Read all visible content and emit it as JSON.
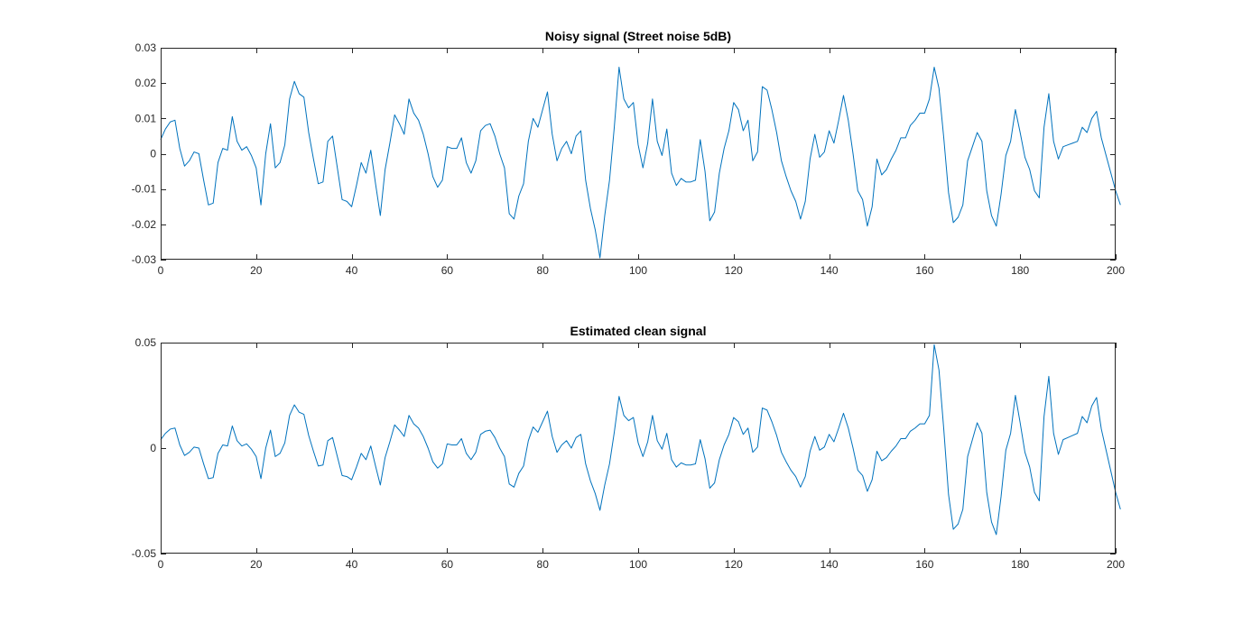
{
  "figure": {
    "background": "#ffffff",
    "axes_color": "#262626",
    "line_color": "#0072bd"
  },
  "chart_data": [
    {
      "type": "line",
      "title": "Noisy signal (Street noise 5dB)",
      "xlabel": "",
      "ylabel": "",
      "xlim": [
        0,
        200
      ],
      "ylim": [
        -0.03,
        0.03
      ],
      "xticks": [
        0,
        20,
        40,
        60,
        80,
        100,
        120,
        140,
        160,
        180,
        200
      ],
      "xtick_labels": [
        "0",
        "20",
        "40",
        "60",
        "80",
        "100",
        "120",
        "140",
        "160",
        "180",
        "200"
      ],
      "yticks": [
        -0.03,
        -0.02,
        -0.01,
        0,
        0.01,
        0.02,
        0.03
      ],
      "ytick_labels": [
        "-0.03",
        "-0.02",
        "-0.01",
        "0",
        "0.01",
        "0.02",
        "0.03"
      ],
      "grid": false,
      "series": [
        {
          "x_start": 0,
          "x_step": 1,
          "values": [
            0.004,
            0.007,
            0.009,
            0.0095,
            0.0015,
            -0.0035,
            -0.002,
            0.0005,
            0.0,
            -0.0075,
            -0.0145,
            -0.014,
            -0.0025,
            0.0015,
            0.001,
            0.0105,
            0.0035,
            0.001,
            0.002,
            -0.0005,
            -0.004,
            -0.0145,
            0.0,
            0.0085,
            -0.004,
            -0.0025,
            0.0025,
            0.0155,
            0.0205,
            0.017,
            0.016,
            0.006,
            -0.0015,
            -0.0085,
            -0.008,
            0.0035,
            0.005,
            -0.004,
            -0.013,
            -0.0135,
            -0.015,
            -0.009,
            -0.0025,
            -0.0055,
            0.001,
            -0.0085,
            -0.0175,
            -0.0045,
            0.003,
            0.011,
            0.0085,
            0.0055,
            0.0155,
            0.0115,
            0.0095,
            0.0055,
            0.0,
            -0.0065,
            -0.0095,
            -0.0075,
            0.002,
            0.0015,
            0.0015,
            0.0045,
            -0.0025,
            -0.0055,
            -0.002,
            0.0065,
            0.008,
            0.0085,
            0.005,
            0.0,
            -0.004,
            -0.017,
            -0.0185,
            -0.012,
            -0.0085,
            0.0035,
            0.01,
            0.0075,
            0.0125,
            0.0175,
            0.0055,
            -0.002,
            0.0015,
            0.0035,
            0.0,
            0.005,
            0.0065,
            -0.0075,
            -0.0155,
            -0.0215,
            -0.0295,
            -0.0175,
            -0.0075,
            0.0075,
            0.0245,
            0.0155,
            0.013,
            0.0145,
            0.0025,
            -0.004,
            0.003,
            0.0155,
            0.0035,
            -0.0005,
            0.007,
            -0.0055,
            -0.009,
            -0.007,
            -0.008,
            -0.008,
            -0.0075,
            0.004,
            -0.005,
            -0.019,
            -0.0165,
            -0.0055,
            0.0015,
            0.0065,
            0.0145,
            0.0125,
            0.0065,
            0.0095,
            -0.002,
            0.0005,
            0.019,
            0.018,
            0.0125,
            0.006,
            -0.002,
            -0.0065,
            -0.0105,
            -0.0135,
            -0.0185,
            -0.0135,
            -0.0015,
            0.0055,
            -0.001,
            0.0005,
            0.0065,
            0.003,
            0.0095,
            0.0165,
            0.0095,
            0.0,
            -0.0105,
            -0.013,
            -0.0205,
            -0.015,
            -0.0015,
            -0.006,
            -0.0045,
            -0.0015,
            0.001,
            0.0045,
            0.0045,
            0.008,
            0.0095,
            0.0115,
            0.0115,
            0.0155,
            0.0245,
            0.0185,
            0.0045,
            -0.011,
            -0.0195,
            -0.018,
            -0.0145,
            -0.002,
            0.002,
            0.006,
            0.0035,
            -0.0105,
            -0.0175,
            -0.0205,
            -0.0115,
            -0.0005,
            0.0035,
            0.0125,
            0.006,
            -0.001,
            -0.0045,
            -0.0105,
            -0.0125,
            0.0075,
            0.017,
            0.0035,
            -0.0015,
            0.002,
            0.0025,
            0.003,
            0.0035,
            0.0075,
            0.006,
            0.01,
            0.012,
            0.0045,
            -0.0005,
            -0.0055,
            -0.0105,
            -0.0145
          ]
        }
      ]
    },
    {
      "type": "line",
      "title": "Estimated clean signal",
      "xlabel": "",
      "ylabel": "",
      "xlim": [
        0,
        200
      ],
      "ylim": [
        -0.05,
        0.05
      ],
      "xticks": [
        0,
        20,
        40,
        60,
        80,
        100,
        120,
        140,
        160,
        180,
        200
      ],
      "xtick_labels": [
        "0",
        "20",
        "40",
        "60",
        "80",
        "100",
        "120",
        "140",
        "160",
        "180",
        "200"
      ],
      "yticks": [
        -0.05,
        0,
        0.05
      ],
      "ytick_labels": [
        "-0.05",
        "0",
        "0.05"
      ],
      "grid": false,
      "series": [
        {
          "x_start": 0,
          "x_step": 1,
          "values": [
            0.004,
            0.007,
            0.009,
            0.0095,
            0.0015,
            -0.0035,
            -0.002,
            0.0005,
            0.0,
            -0.0075,
            -0.0145,
            -0.014,
            -0.0025,
            0.0015,
            0.001,
            0.0105,
            0.0035,
            0.001,
            0.002,
            -0.0005,
            -0.004,
            -0.0145,
            0.0,
            0.0085,
            -0.004,
            -0.0025,
            0.0025,
            0.0155,
            0.0205,
            0.017,
            0.016,
            0.006,
            -0.0015,
            -0.0085,
            -0.008,
            0.0035,
            0.005,
            -0.004,
            -0.013,
            -0.0135,
            -0.015,
            -0.009,
            -0.0025,
            -0.0055,
            0.001,
            -0.0085,
            -0.0175,
            -0.0045,
            0.003,
            0.011,
            0.0085,
            0.0055,
            0.0155,
            0.0115,
            0.0095,
            0.0055,
            0.0,
            -0.0065,
            -0.0095,
            -0.0075,
            0.002,
            0.0015,
            0.0015,
            0.0045,
            -0.0025,
            -0.0055,
            -0.002,
            0.0065,
            0.008,
            0.0085,
            0.005,
            0.0,
            -0.004,
            -0.017,
            -0.0185,
            -0.012,
            -0.0085,
            0.0035,
            0.01,
            0.0075,
            0.0125,
            0.0175,
            0.0055,
            -0.002,
            0.0015,
            0.0035,
            0.0,
            0.005,
            0.0065,
            -0.0075,
            -0.0155,
            -0.0215,
            -0.0295,
            -0.0175,
            -0.0075,
            0.0075,
            0.0245,
            0.0155,
            0.013,
            0.0145,
            0.0025,
            -0.004,
            0.003,
            0.0155,
            0.0035,
            -0.0005,
            0.007,
            -0.0055,
            -0.009,
            -0.007,
            -0.008,
            -0.008,
            -0.0075,
            0.004,
            -0.005,
            -0.019,
            -0.0165,
            -0.0055,
            0.0015,
            0.0065,
            0.0145,
            0.0125,
            0.0065,
            0.0095,
            -0.002,
            0.0005,
            0.019,
            0.018,
            0.0125,
            0.006,
            -0.002,
            -0.0065,
            -0.0105,
            -0.0135,
            -0.0185,
            -0.0135,
            -0.0015,
            0.0055,
            -0.001,
            0.0005,
            0.0065,
            0.003,
            0.0095,
            0.0165,
            0.0095,
            0.0,
            -0.0105,
            -0.013,
            -0.0205,
            -0.015,
            -0.0015,
            -0.006,
            -0.0045,
            -0.0015,
            0.001,
            0.0045,
            0.0045,
            0.008,
            0.0095,
            0.0115,
            0.0115,
            0.0155,
            0.049,
            0.037,
            0.009,
            -0.022,
            -0.0385,
            -0.036,
            -0.029,
            -0.004,
            0.004,
            0.012,
            0.007,
            -0.021,
            -0.035,
            -0.041,
            -0.023,
            -0.001,
            0.007,
            0.025,
            0.012,
            -0.002,
            -0.009,
            -0.021,
            -0.025,
            0.015,
            0.034,
            0.007,
            -0.003,
            0.004,
            0.005,
            0.006,
            0.007,
            0.015,
            0.012,
            0.02,
            0.024,
            0.009,
            -0.001,
            -0.011,
            -0.021,
            -0.029
          ]
        }
      ]
    }
  ]
}
